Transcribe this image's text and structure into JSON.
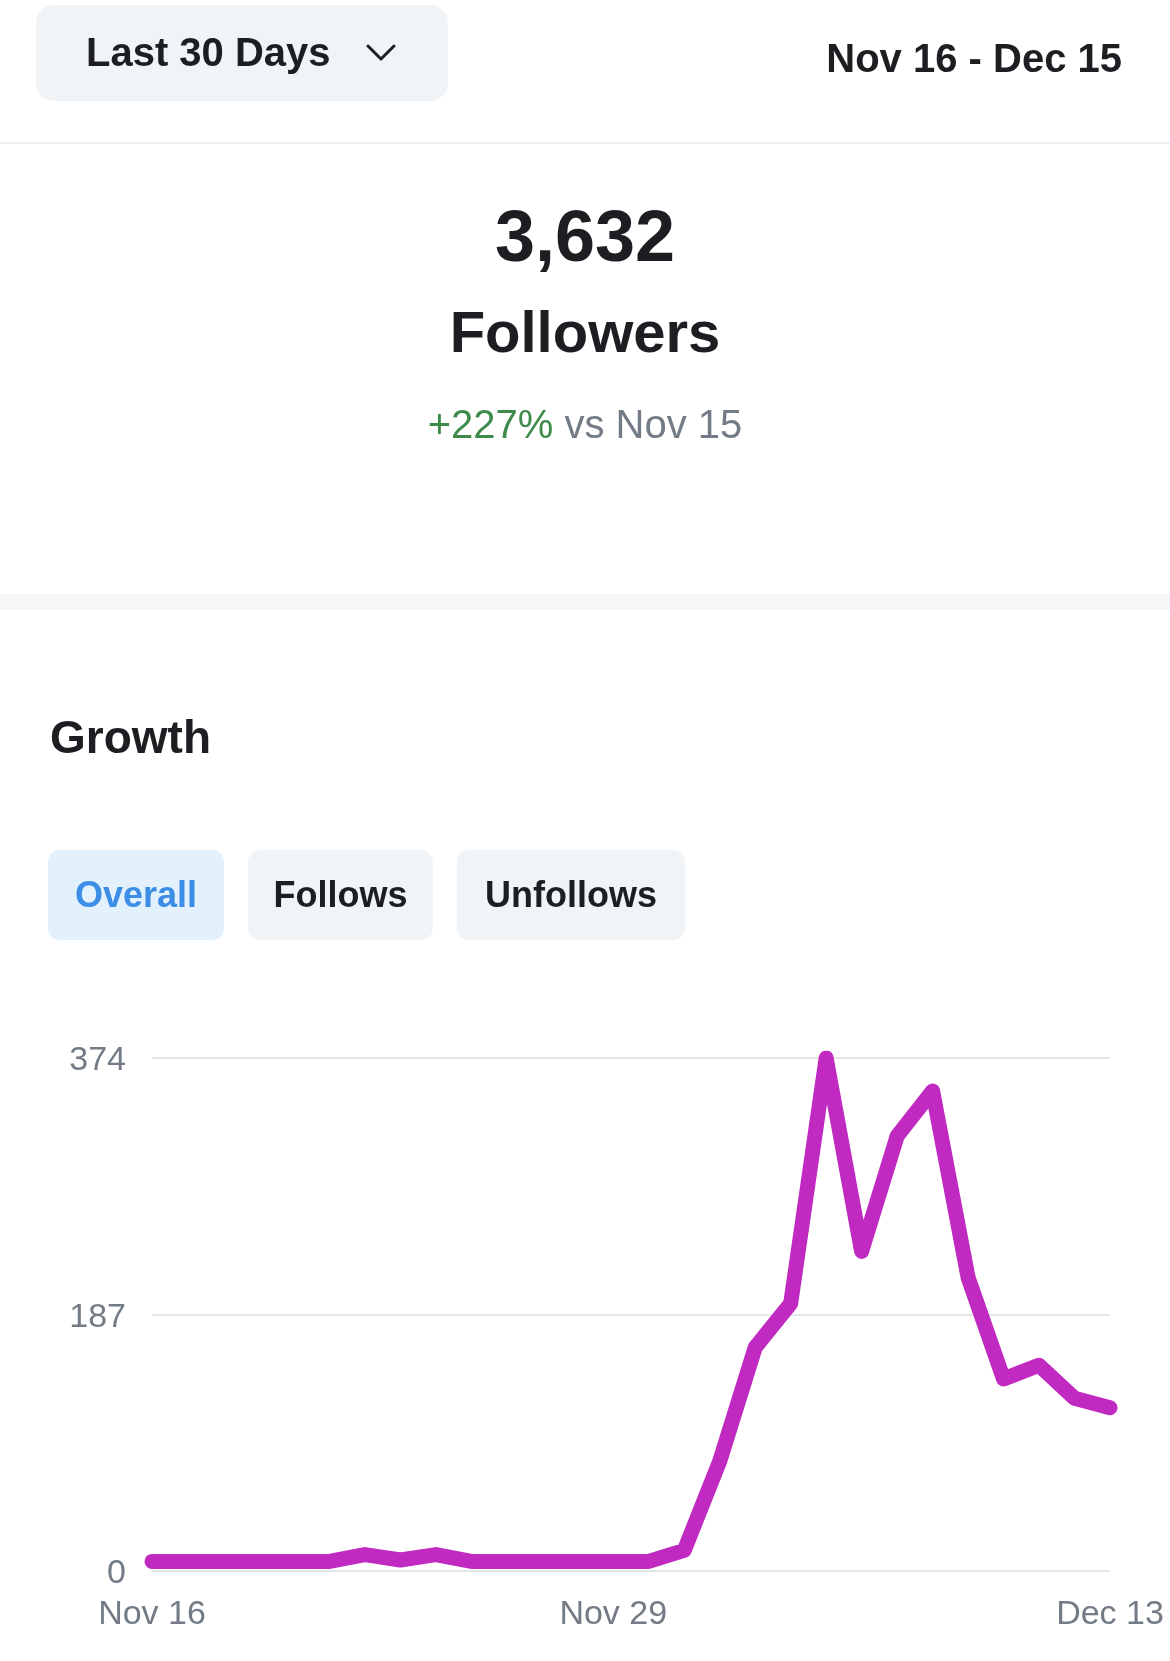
{
  "chart_data": {
    "type": "line",
    "title": "Growth",
    "annotations": [
      "Last 30 Days",
      "Nov 16 - Dec 15",
      "3,632",
      "Followers",
      "+227%",
      "vs Nov 15",
      "Overall",
      "Follows",
      "Unfollows"
    ],
    "categories": [
      "Nov 16",
      null,
      null,
      null,
      null,
      null,
      null,
      null,
      null,
      null,
      null,
      null,
      null,
      "Nov 29",
      null,
      null,
      null,
      null,
      null,
      null,
      null,
      null,
      null,
      null,
      null,
      null,
      null,
      "Dec 13"
    ],
    "series": [
      {
        "color": "#c02ac0",
        "values": [
          7,
          7,
          7,
          7,
          7,
          7,
          12,
          8,
          12,
          7,
          7,
          7,
          7,
          7,
          7,
          15,
          80,
          163,
          195,
          374,
          233,
          317,
          350,
          214,
          140,
          150,
          126,
          119
        ]
      }
    ],
    "ylim": [
      0,
      374
    ],
    "yticks": [
      0,
      187,
      374
    ],
    "grid": "y",
    "line_style": "solid"
  }
}
